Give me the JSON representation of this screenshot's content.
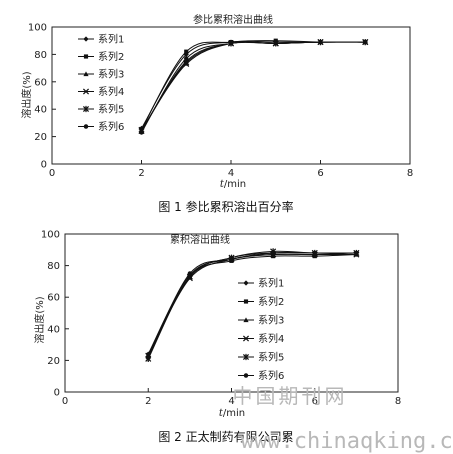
{
  "chart_data": [
    {
      "type": "line",
      "title": "参比累积溶出曲线",
      "ylabel": "溶出度(%)",
      "xlabel_var": "t",
      "xlabel_unit": "/min",
      "xlim": [
        0,
        8
      ],
      "ylim": [
        0,
        100
      ],
      "xticks": [
        "0",
        "2",
        "4",
        "6",
        "8"
      ],
      "yticks": [
        "0",
        "20",
        "40",
        "60",
        "80",
        "100"
      ],
      "legend_position": "top-left",
      "series": [
        {
          "name": "系列1",
          "marker": "diamond",
          "x": [
            2,
            3,
            4,
            5,
            6,
            7
          ],
          "y": [
            26,
            80,
            89,
            89,
            89,
            89
          ]
        },
        {
          "name": "系列2",
          "marker": "square",
          "x": [
            2,
            3,
            4,
            5,
            6,
            7
          ],
          "y": [
            25,
            82,
            89,
            90,
            89,
            89
          ]
        },
        {
          "name": "系列3",
          "marker": "triangle",
          "x": [
            2,
            3,
            4,
            5,
            6,
            7
          ],
          "y": [
            24,
            75,
            88,
            88,
            89,
            89
          ]
        },
        {
          "name": "系列4",
          "marker": "x",
          "x": [
            2,
            3,
            4,
            5,
            6,
            7
          ],
          "y": [
            25,
            73,
            88,
            88,
            89,
            89
          ]
        },
        {
          "name": "系列5",
          "marker": "star",
          "x": [
            2,
            3,
            4,
            5,
            6,
            7
          ],
          "y": [
            24,
            74,
            88,
            88,
            89,
            89
          ]
        },
        {
          "name": "系列6",
          "marker": "circle",
          "x": [
            2,
            3,
            4,
            5,
            6,
            7
          ],
          "y": [
            23,
            77,
            88,
            88,
            89,
            89
          ]
        }
      ],
      "caption": "图 1 参比累积溶出百分率"
    },
    {
      "type": "line",
      "title": "累积溶出曲线",
      "ylabel": "溶出度(%)",
      "xlabel_var": "t",
      "xlabel_unit": "/min",
      "xlim": [
        0,
        8
      ],
      "ylim": [
        0,
        100
      ],
      "xticks": [
        "0",
        "2",
        "4",
        "6",
        "8"
      ],
      "yticks": [
        "0",
        "20",
        "40",
        "60",
        "80",
        "100"
      ],
      "legend_position": "center-right",
      "series": [
        {
          "name": "系列1",
          "marker": "diamond",
          "x": [
            2,
            3,
            4,
            5,
            6,
            7
          ],
          "y": [
            24,
            74,
            84,
            87,
            87,
            88
          ]
        },
        {
          "name": "系列2",
          "marker": "square",
          "x": [
            2,
            3,
            4,
            5,
            6,
            7
          ],
          "y": [
            22,
            73,
            83,
            86,
            86,
            87
          ]
        },
        {
          "name": "系列3",
          "marker": "triangle",
          "x": [
            2,
            3,
            4,
            5,
            6,
            7
          ],
          "y": [
            23,
            73,
            85,
            88,
            88,
            88
          ]
        },
        {
          "name": "系列4",
          "marker": "x",
          "x": [
            2,
            3,
            4,
            5,
            6,
            7
          ],
          "y": [
            23,
            72,
            84,
            87,
            87,
            87
          ]
        },
        {
          "name": "系列5",
          "marker": "star",
          "x": [
            2,
            3,
            4,
            5,
            6,
            7
          ],
          "y": [
            21,
            73,
            85,
            89,
            88,
            88
          ]
        },
        {
          "name": "系列6",
          "marker": "circle",
          "x": [
            2,
            3,
            4,
            5,
            6,
            7
          ],
          "y": [
            22,
            75,
            84,
            88,
            88,
            88
          ]
        }
      ],
      "caption": "图 2 正太制药有限公司累"
    }
  ],
  "watermark": {
    "line1": "中国期刊网",
    "line2": "www.chinaqking.com"
  }
}
